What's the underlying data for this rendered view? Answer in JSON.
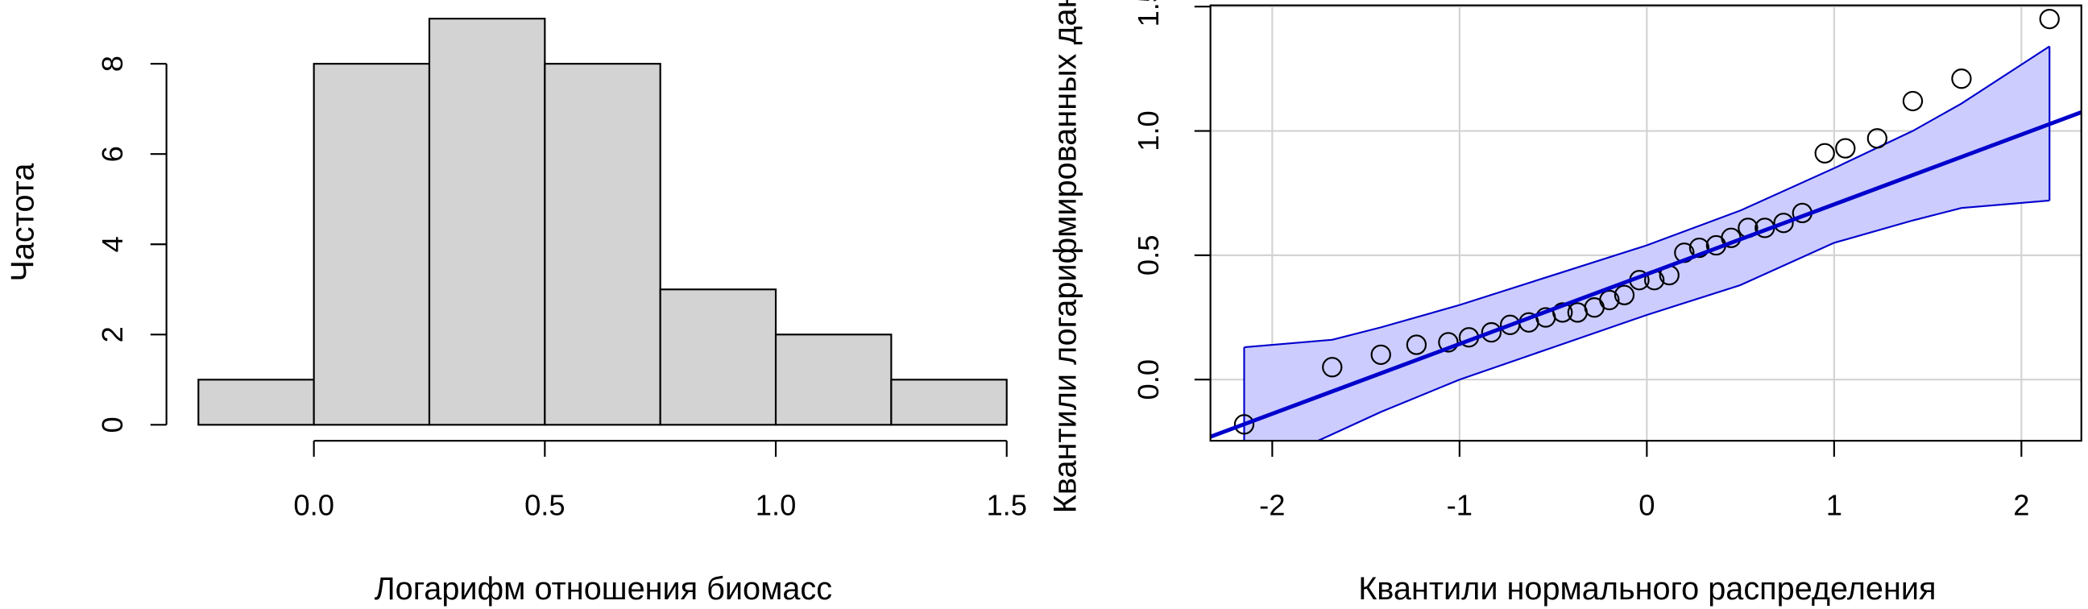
{
  "chart_data": [
    {
      "type": "histogram",
      "x_label": "Логарифм отношения биомасс",
      "y_label": "Частота",
      "bins": [
        -0.25,
        0,
        0.25,
        0.5,
        0.75,
        1,
        1.25,
        1.5
      ],
      "values": [
        1,
        8,
        9,
        8,
        3,
        2,
        1
      ],
      "color": "#d3d3d3",
      "xlim": [
        -0.25,
        1.5
      ],
      "ylim": [
        0,
        9
      ],
      "xticks": [
        {
          "value": 0,
          "label": "0.0"
        },
        0.5,
        {
          "value": 1,
          "label": "1.0"
        },
        1.5
      ],
      "yticks": [
        0,
        2,
        4,
        6,
        8
      ]
    },
    {
      "type": "qqplot",
      "x_label": "Квантили нормального распределения",
      "y_label": "Квантили логарифмированных данных",
      "color": "#0000cc",
      "band_color": "#ccccff",
      "grid": true,
      "xlim": [
        -2.33,
        2.32
      ],
      "ylim": [
        -0.246,
        1.505
      ],
      "xticks": [
        -2,
        -1,
        0,
        1,
        2
      ],
      "yticks": [
        {
          "value": 0,
          "label": "0.0"
        },
        0.5,
        {
          "value": 1,
          "label": "1.0"
        },
        1.5
      ],
      "x": [
        -2.15,
        -1.68,
        -1.42,
        -1.23,
        -1.06,
        -0.95,
        -0.83,
        -0.73,
        -0.63,
        -0.54,
        -0.45,
        -0.37,
        -0.28,
        -0.2,
        -0.12,
        -0.04,
        0.04,
        0.12,
        0.2,
        0.28,
        0.37,
        0.45,
        0.54,
        0.63,
        0.73,
        0.83,
        0.95,
        1.06,
        1.23,
        1.42,
        1.68,
        2.15
      ],
      "values": [
        -0.18,
        0.05,
        0.1,
        0.14,
        0.15,
        0.17,
        0.19,
        0.22,
        0.23,
        0.25,
        0.27,
        0.27,
        0.29,
        0.32,
        0.34,
        0.4,
        0.4,
        0.42,
        0.51,
        0.53,
        0.54,
        0.57,
        0.61,
        0.61,
        0.63,
        0.67,
        0.91,
        0.93,
        0.97,
        1.12,
        1.21,
        1.45
      ],
      "reference_line": {
        "x": [
          -2.33,
          2.32
        ],
        "y": [
          -0.23,
          1.075
        ]
      },
      "envelope": {
        "x": [
          -2.15,
          -1.68,
          -1.42,
          -1,
          -0.5,
          0,
          0.5,
          1,
          1.42,
          1.68,
          2.15
        ],
        "upper": [
          0.13,
          0.16,
          0.21,
          0.3,
          0.42,
          0.54,
          0.68,
          0.85,
          1.0,
          1.11,
          1.34
        ],
        "lower": [
          -0.38,
          -0.22,
          -0.13,
          0.0,
          0.13,
          0.26,
          0.38,
          0.55,
          0.64,
          0.69,
          0.72
        ]
      }
    }
  ]
}
